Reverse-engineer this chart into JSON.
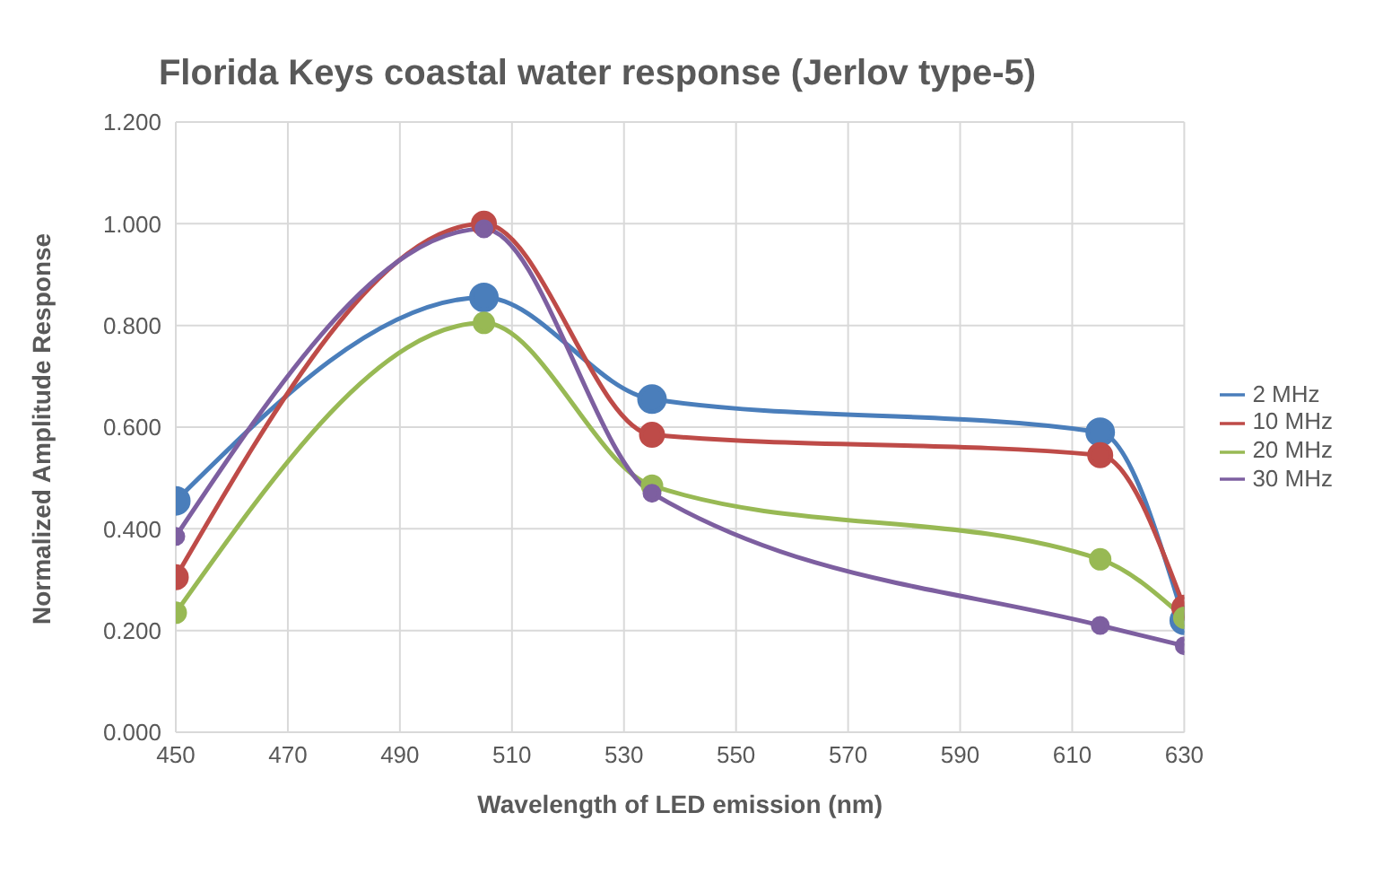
{
  "chart_data": {
    "type": "line",
    "title": "Florida Keys coastal water response (Jerlov type-5)",
    "xlabel": "Wavelength of LED emission (nm)",
    "ylabel": "Normalized Amplitude Response",
    "x": [
      450,
      505,
      535,
      615,
      630
    ],
    "series": [
      {
        "name": "2 MHz",
        "color": "#4a7ebb",
        "values": [
          0.455,
          0.855,
          0.655,
          0.59,
          0.22
        ]
      },
      {
        "name": "10 MHz",
        "color": "#be4b48",
        "values": [
          0.305,
          1.0,
          0.585,
          0.545,
          0.245
        ]
      },
      {
        "name": "20 MHz",
        "color": "#98b954",
        "values": [
          0.235,
          0.805,
          0.485,
          0.34,
          0.225
        ]
      },
      {
        "name": "30 MHz",
        "color": "#7d5fa0",
        "values": [
          0.385,
          0.99,
          0.47,
          0.21,
          0.17
        ]
      }
    ],
    "xlim": [
      450,
      630
    ],
    "xticks": [
      450,
      470,
      490,
      510,
      530,
      550,
      570,
      590,
      610,
      630
    ],
    "ylim": [
      0,
      1.2
    ],
    "yticks": [
      {
        "value": 0,
        "label": "0.000"
      },
      {
        "value": 0.2,
        "label": "0.200"
      },
      {
        "value": 0.4,
        "label": "0.400"
      },
      {
        "value": 0.6,
        "label": "0.600"
      },
      {
        "value": 0.8,
        "label": "0.800"
      },
      {
        "value": 1.0,
        "label": "1.000"
      },
      {
        "value": 1.2,
        "label": "1.200"
      }
    ],
    "grid": true,
    "legend": "right",
    "marker": "circle",
    "line_style": "solid"
  }
}
